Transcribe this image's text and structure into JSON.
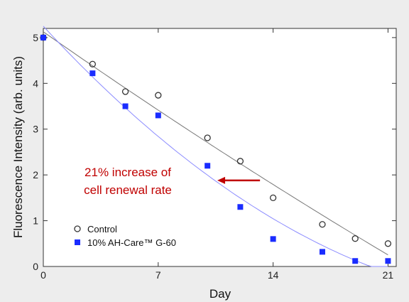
{
  "chart_data": {
    "type": "scatter",
    "title": "",
    "xlabel": "Day",
    "ylabel": "Fluorescence Intensity (arb. units)",
    "xlim": [
      0,
      21.5
    ],
    "ylim": [
      0,
      5.2
    ],
    "xticks": [
      0,
      7,
      14,
      21
    ],
    "yticks": [
      0,
      1,
      2,
      3,
      4,
      5
    ],
    "grid": false,
    "legend_position": "bottom-left",
    "series": [
      {
        "name": "Control",
        "marker": "open-circle",
        "color": "#333333",
        "fit_color": "#777777",
        "x": [
          0,
          3,
          5,
          7,
          10,
          12,
          14,
          17,
          19,
          21
        ],
        "y": [
          5.0,
          4.42,
          3.82,
          3.74,
          2.81,
          2.3,
          1.5,
          0.92,
          0.61,
          0.5
        ]
      },
      {
        "name": "10% AH-Care™ G-60",
        "marker": "filled-square",
        "color": "#1a2cff",
        "fit_color": "#8c8cff",
        "x": [
          0,
          3,
          5,
          7,
          10,
          12,
          14,
          17,
          19,
          21
        ],
        "y": [
          5.0,
          4.22,
          3.5,
          3.3,
          2.2,
          1.3,
          0.6,
          0.32,
          0.12,
          0.12
        ]
      }
    ],
    "annotation": {
      "lines": [
        "21% increase of",
        "cell renewal rate"
      ],
      "color": "#c00000",
      "arrow_from": [
        13.2,
        1.88
      ],
      "arrow_to": [
        10.6,
        1.88
      ]
    }
  }
}
